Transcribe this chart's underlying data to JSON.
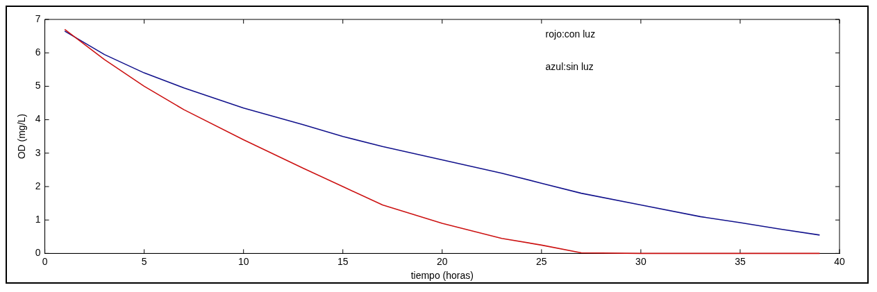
{
  "chart_data": {
    "type": "line",
    "xlabel": "tiempo (horas)",
    "ylabel": "OD (mg/L)",
    "x": [
      1,
      3,
      5,
      7,
      10,
      13,
      15,
      17,
      20,
      23,
      25,
      27,
      30,
      33,
      35,
      37,
      39
    ],
    "series": [
      {
        "color": "#cc1111",
        "values": [
          6.7,
          5.8,
          5.0,
          4.3,
          3.4,
          2.55,
          2.0,
          1.45,
          0.9,
          0.45,
          0.25,
          0.02,
          0,
          0,
          0,
          0,
          0
        ]
      },
      {
        "color": "#11118c",
        "values": [
          6.65,
          5.95,
          5.4,
          4.95,
          4.35,
          3.85,
          3.5,
          3.2,
          2.8,
          2.4,
          2.1,
          1.8,
          1.45,
          1.1,
          0.92,
          0.73,
          0.55
        ]
      }
    ],
    "xlim": [
      0,
      40
    ],
    "xticks": [
      0,
      5,
      10,
      15,
      20,
      25,
      30,
      35,
      40
    ],
    "ylim": [
      0,
      7
    ],
    "yticks": [
      0,
      1,
      2,
      3,
      4,
      5,
      6,
      7
    ],
    "grid": false,
    "legend": false,
    "marker": "none",
    "line_style": "solid",
    "annotations": [
      "rojo:con luz",
      "azul:sin luz"
    ]
  }
}
